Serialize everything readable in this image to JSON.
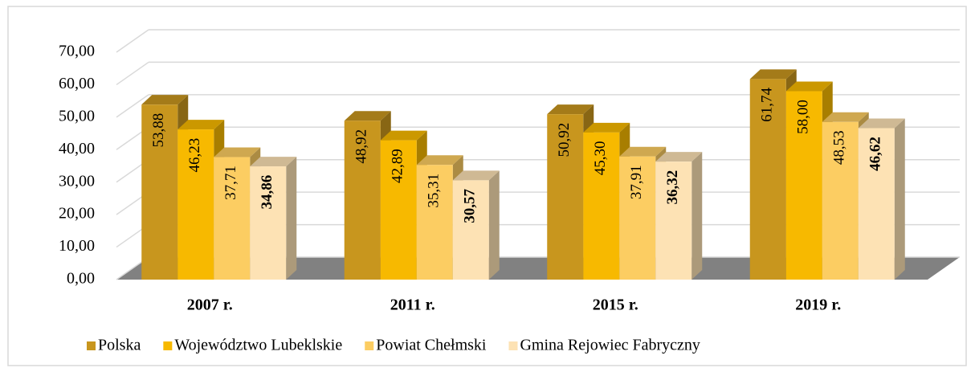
{
  "chart_data": {
    "type": "bar3d",
    "categories": [
      "2007 r.",
      "2011 r.",
      "2015 r.",
      "2019 r."
    ],
    "series": [
      {
        "name": "Polska",
        "color": "#c8961e",
        "values": [
          53.88,
          48.92,
          50.92,
          61.74
        ],
        "value_labels": [
          "53,88",
          "48,92",
          "50,92",
          "61,74"
        ]
      },
      {
        "name": "Województwo Lubeklskie",
        "color": "#f7b900",
        "values": [
          46.23,
          42.89,
          45.3,
          58.0
        ],
        "value_labels": [
          "46,23",
          "42,89",
          "45,30",
          "58,00"
        ]
      },
      {
        "name": "Powiat Chełmski",
        "color": "#fccd62",
        "values": [
          37.71,
          35.31,
          37.91,
          48.53
        ],
        "value_labels": [
          "37,71",
          "35,31",
          "37,91",
          "48,53"
        ]
      },
      {
        "name": "Gmina Rejowiec Fabryczny",
        "color": "#fde2b4",
        "values": [
          34.86,
          30.57,
          36.32,
          46.62
        ],
        "value_labels": [
          "34,86",
          "30,57",
          "36,32",
          "46,62"
        ],
        "label_weight": "bold"
      }
    ],
    "ylim": [
      0,
      70
    ],
    "yticks": [
      {
        "value": 0,
        "label": "0,00"
      },
      {
        "value": 10,
        "label": "10,00"
      },
      {
        "value": 20,
        "label": "20,00"
      },
      {
        "value": 30,
        "label": "30,00"
      },
      {
        "value": 40,
        "label": "40,00"
      },
      {
        "value": 50,
        "label": "50,00"
      },
      {
        "value": 60,
        "label": "60,00"
      },
      {
        "value": 70,
        "label": "70,00"
      }
    ],
    "grid": true,
    "legend": "bottom"
  }
}
